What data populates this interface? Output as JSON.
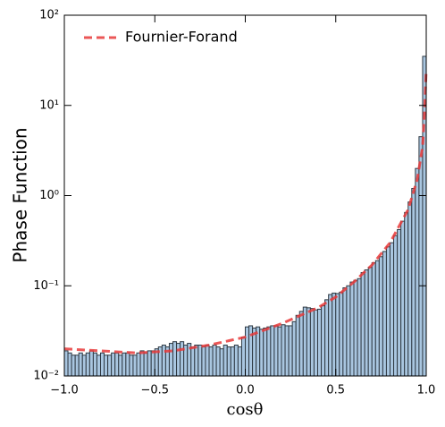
{
  "chart_data": {
    "type": "histogram",
    "xlabel": "cosθ",
    "ylabel": "Phase Function",
    "xlim": [
      -1,
      1
    ],
    "ylim": [
      0.01,
      100
    ],
    "yscale": "log",
    "xticks": [
      {
        "value": -1,
        "label": "−1.0"
      },
      {
        "value": -0.5,
        "label": "−0.5"
      },
      {
        "value": 0,
        "label": "0.0"
      },
      {
        "value": 0.5,
        "label": "0.5"
      },
      {
        "value": 1,
        "label": "1.0"
      }
    ],
    "yticks": [
      {
        "value": 0.01,
        "label": "10⁻²"
      },
      {
        "value": 0.1,
        "label": "10⁻¹"
      },
      {
        "value": 1,
        "label": "10⁰"
      },
      {
        "value": 10,
        "label": "10¹"
      },
      {
        "value": 100,
        "label": "10²"
      }
    ],
    "color": "#a9c6e0",
    "edgecolor": "#2f3a44",
    "legend": "upper left",
    "bins": [
      -1,
      -0.98,
      -0.96,
      -0.94,
      -0.92,
      -0.9,
      -0.88,
      -0.86,
      -0.84,
      -0.82,
      -0.8,
      -0.78,
      -0.76,
      -0.74,
      -0.72,
      -0.7,
      -0.68,
      -0.66,
      -0.64,
      -0.62,
      -0.6,
      -0.58,
      -0.56,
      -0.54,
      -0.52,
      -0.5,
      -0.48,
      -0.46,
      -0.44,
      -0.42,
      -0.4,
      -0.38,
      -0.36,
      -0.34,
      -0.32,
      -0.3,
      -0.28,
      -0.26,
      -0.24,
      -0.22,
      -0.2,
      -0.18,
      -0.16,
      -0.14,
      -0.12,
      -0.1,
      -0.08,
      -0.06,
      -0.04,
      -0.02,
      0,
      0.02,
      0.04,
      0.06,
      0.08,
      0.1,
      0.12,
      0.14,
      0.16,
      0.18,
      0.2,
      0.22,
      0.24,
      0.26,
      0.28,
      0.3,
      0.32,
      0.34,
      0.36,
      0.38,
      0.4,
      0.42,
      0.44,
      0.46,
      0.48,
      0.5,
      0.52,
      0.54,
      0.56,
      0.58,
      0.6,
      0.62,
      0.64,
      0.66,
      0.68,
      0.7,
      0.72,
      0.74,
      0.76,
      0.78,
      0.8,
      0.82,
      0.84,
      0.86,
      0.88,
      0.9,
      0.92,
      0.94,
      0.96,
      0.98,
      1
    ],
    "values": [
      0.019,
      0.018,
      0.017,
      0.017,
      0.018,
      0.017,
      0.018,
      0.019,
      0.018,
      0.017,
      0.018,
      0.017,
      0.017,
      0.018,
      0.018,
      0.017,
      0.018,
      0.018,
      0.017,
      0.017,
      0.018,
      0.019,
      0.018,
      0.019,
      0.019,
      0.02,
      0.021,
      0.022,
      0.021,
      0.023,
      0.024,
      0.023,
      0.024,
      0.022,
      0.023,
      0.021,
      0.022,
      0.022,
      0.021,
      0.022,
      0.021,
      0.022,
      0.021,
      0.02,
      0.022,
      0.021,
      0.021,
      0.022,
      0.021,
      0.027,
      0.035,
      0.036,
      0.034,
      0.035,
      0.033,
      0.034,
      0.035,
      0.036,
      0.036,
      0.035,
      0.037,
      0.036,
      0.036,
      0.04,
      0.047,
      0.052,
      0.058,
      0.057,
      0.056,
      0.054,
      0.055,
      0.06,
      0.07,
      0.08,
      0.083,
      0.082,
      0.085,
      0.095,
      0.1,
      0.11,
      0.115,
      0.12,
      0.14,
      0.15,
      0.16,
      0.18,
      0.19,
      0.21,
      0.24,
      0.27,
      0.3,
      0.36,
      0.42,
      0.52,
      0.65,
      0.85,
      1.2,
      2,
      4.5,
      35
    ],
    "line": {
      "type": "line",
      "name": "Fournier-Forand",
      "color": "#e8393a",
      "dashed": true,
      "x": [
        -1,
        -0.8,
        -0.6,
        -0.4,
        -0.2,
        0,
        0.2,
        0.4,
        0.5,
        0.6,
        0.7,
        0.8,
        0.9,
        0.95,
        0.98,
        0.99,
        1
      ],
      "values": [
        0.02,
        0.019,
        0.018,
        0.019,
        0.022,
        0.027,
        0.038,
        0.057,
        0.075,
        0.11,
        0.17,
        0.3,
        0.7,
        1.5,
        3.5,
        8,
        25
      ]
    }
  }
}
